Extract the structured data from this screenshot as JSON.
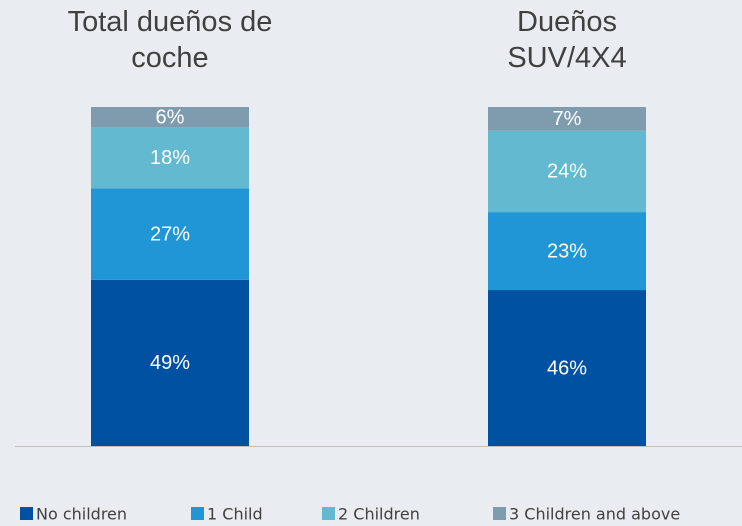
{
  "chart_data": {
    "type": "stacked_bar",
    "categories": [
      "Total dueños de coche",
      "Dueños SUV/4X4"
    ],
    "series": [
      {
        "name": "No children",
        "color": "#0051a1",
        "values": [
          49,
          46
        ],
        "value_labels": [
          "49%",
          "46%"
        ]
      },
      {
        "name": "1 Child",
        "color": "#2196d6",
        "values": [
          27,
          23
        ],
        "value_labels": [
          "27%",
          "23%"
        ]
      },
      {
        "name": "2 Children",
        "color": "#62b9d0",
        "values": [
          18,
          24
        ],
        "value_labels": [
          "18%",
          "24%"
        ]
      },
      {
        "name": "3 Children and above",
        "color": "#7f9cae",
        "values": [
          6,
          7
        ],
        "value_labels": [
          "6%",
          "7%"
        ]
      }
    ],
    "ylim": [
      0,
      100
    ],
    "legend": "bottom"
  }
}
